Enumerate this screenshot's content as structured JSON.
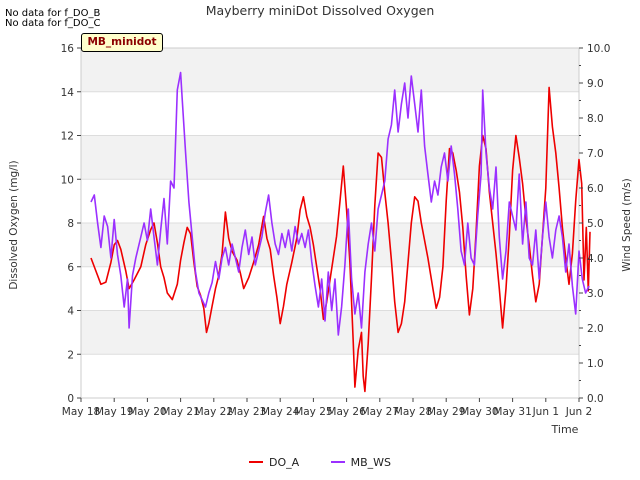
{
  "notes": [
    "No data for f_DO_B",
    "No data for f_DO_C"
  ],
  "site_label": "MB_minidot",
  "chart_data": {
    "type": "line",
    "title": "Mayberry miniDot Dissolved Oxygen",
    "xlabel": "Time",
    "ylabel": "Dissolved Oxygen (mg/l)",
    "y2label": "Wind Speed (m/s)",
    "x_ticks": [
      "May 18",
      "May 19",
      "May 20",
      "May 21",
      "May 22",
      "May 23",
      "May 24",
      "May 25",
      "May 26",
      "May 27",
      "May 28",
      "May 29",
      "May 30",
      "May 31",
      "Jun 1",
      "Jun 2"
    ],
    "xlim": [
      0,
      15
    ],
    "ylim": [
      0,
      16
    ],
    "y_ticks": [
      0,
      2,
      4,
      6,
      8,
      10,
      12,
      14,
      16
    ],
    "y2lim": [
      0,
      10
    ],
    "y2_ticks": [
      "0.0",
      "1.0",
      "2.0",
      "3.0",
      "4.0",
      "5.0",
      "6.0",
      "7.0",
      "8.0",
      "9.0",
      "10.0"
    ],
    "grid": true,
    "legend_position": "bottom",
    "series": [
      {
        "name": "DO_A",
        "color": "#ee0000",
        "axis": "left",
        "points": [
          [
            0.3,
            6.4
          ],
          [
            0.5,
            5.6
          ],
          [
            0.6,
            5.2
          ],
          [
            0.75,
            5.3
          ],
          [
            0.9,
            6.2
          ],
          [
            1.0,
            7.0
          ],
          [
            1.1,
            7.2
          ],
          [
            1.2,
            6.8
          ],
          [
            1.35,
            5.8
          ],
          [
            1.45,
            5.0
          ],
          [
            1.6,
            5.4
          ],
          [
            1.8,
            6.0
          ],
          [
            1.95,
            7.0
          ],
          [
            2.1,
            7.7
          ],
          [
            2.2,
            8.0
          ],
          [
            2.3,
            7.1
          ],
          [
            2.4,
            6.0
          ],
          [
            2.5,
            5.5
          ],
          [
            2.6,
            4.8
          ],
          [
            2.75,
            4.5
          ],
          [
            2.9,
            5.2
          ],
          [
            3.0,
            6.3
          ],
          [
            3.1,
            7.1
          ],
          [
            3.2,
            7.8
          ],
          [
            3.3,
            7.5
          ],
          [
            3.4,
            6.2
          ],
          [
            3.5,
            5.1
          ],
          [
            3.6,
            4.7
          ],
          [
            3.7,
            4.1
          ],
          [
            3.78,
            3.0
          ],
          [
            3.85,
            3.4
          ],
          [
            3.95,
            4.2
          ],
          [
            4.05,
            5.0
          ],
          [
            4.15,
            5.6
          ],
          [
            4.25,
            6.6
          ],
          [
            4.35,
            8.5
          ],
          [
            4.45,
            7.3
          ],
          [
            4.55,
            6.7
          ],
          [
            4.7,
            6.3
          ],
          [
            4.8,
            5.7
          ],
          [
            4.9,
            5.0
          ],
          [
            5.05,
            5.5
          ],
          [
            5.2,
            6.2
          ],
          [
            5.35,
            7.0
          ],
          [
            5.5,
            8.3
          ],
          [
            5.6,
            7.3
          ],
          [
            5.7,
            6.8
          ],
          [
            5.8,
            5.6
          ],
          [
            5.9,
            4.6
          ],
          [
            6.0,
            3.4
          ],
          [
            6.1,
            4.2
          ],
          [
            6.2,
            5.2
          ],
          [
            6.35,
            6.2
          ],
          [
            6.5,
            7.3
          ],
          [
            6.6,
            8.6
          ],
          [
            6.7,
            9.2
          ],
          [
            6.8,
            8.3
          ],
          [
            6.9,
            7.8
          ],
          [
            7.0,
            7.0
          ],
          [
            7.1,
            6.0
          ],
          [
            7.2,
            5.0
          ],
          [
            7.3,
            3.6
          ],
          [
            7.4,
            4.4
          ],
          [
            7.5,
            5.4
          ],
          [
            7.6,
            6.4
          ],
          [
            7.7,
            7.4
          ],
          [
            7.8,
            9.0
          ],
          [
            7.9,
            10.6
          ],
          [
            8.0,
            8.6
          ],
          [
            8.1,
            6.2
          ],
          [
            8.2,
            2.6
          ],
          [
            8.25,
            0.5
          ],
          [
            8.35,
            2.2
          ],
          [
            8.45,
            3.0
          ],
          [
            8.5,
            1.0
          ],
          [
            8.55,
            0.3
          ],
          [
            8.65,
            2.5
          ],
          [
            8.75,
            5.5
          ],
          [
            8.85,
            8.8
          ],
          [
            8.95,
            11.2
          ],
          [
            9.05,
            11.0
          ],
          [
            9.15,
            9.4
          ],
          [
            9.25,
            8.0
          ],
          [
            9.35,
            6.3
          ],
          [
            9.45,
            4.4
          ],
          [
            9.55,
            3.0
          ],
          [
            9.65,
            3.4
          ],
          [
            9.75,
            4.4
          ],
          [
            9.85,
            6.2
          ],
          [
            9.95,
            8.0
          ],
          [
            10.05,
            9.2
          ],
          [
            10.15,
            9.0
          ],
          [
            10.25,
            8.0
          ],
          [
            10.35,
            7.2
          ],
          [
            10.45,
            6.4
          ],
          [
            10.6,
            5.0
          ],
          [
            10.7,
            4.1
          ],
          [
            10.8,
            4.6
          ],
          [
            10.9,
            6.0
          ],
          [
            11.0,
            9.0
          ],
          [
            11.1,
            11.4
          ],
          [
            11.2,
            11.2
          ],
          [
            11.3,
            10.4
          ],
          [
            11.4,
            9.4
          ],
          [
            11.5,
            7.8
          ],
          [
            11.6,
            5.6
          ],
          [
            11.7,
            3.8
          ],
          [
            11.8,
            5.0
          ],
          [
            11.9,
            7.6
          ],
          [
            12.0,
            10.6
          ],
          [
            12.1,
            12.0
          ],
          [
            12.2,
            11.4
          ],
          [
            12.3,
            9.4
          ],
          [
            12.4,
            8.0
          ],
          [
            12.5,
            6.6
          ],
          [
            12.6,
            5.0
          ],
          [
            12.7,
            3.2
          ],
          [
            12.8,
            5.0
          ],
          [
            12.9,
            7.4
          ],
          [
            13.0,
            10.4
          ],
          [
            13.1,
            12.0
          ],
          [
            13.2,
            11.0
          ],
          [
            13.3,
            9.8
          ],
          [
            13.4,
            8.2
          ],
          [
            13.5,
            7.0
          ],
          [
            13.6,
            5.6
          ],
          [
            13.7,
            4.4
          ],
          [
            13.8,
            5.2
          ],
          [
            13.9,
            7.4
          ],
          [
            14.0,
            9.6
          ],
          [
            14.1,
            14.2
          ],
          [
            14.2,
            12.4
          ],
          [
            14.3,
            11.2
          ],
          [
            14.4,
            9.6
          ],
          [
            14.5,
            7.8
          ],
          [
            14.6,
            6.4
          ],
          [
            14.7,
            5.2
          ],
          [
            14.8,
            6.6
          ],
          [
            14.9,
            9.0
          ],
          [
            15.0,
            10.9
          ],
          [
            15.08,
            9.8
          ],
          [
            15.15,
            5.4
          ],
          [
            15.22,
            7.8
          ],
          [
            15.28,
            4.9
          ],
          [
            15.33,
            7.6
          ]
        ]
      },
      {
        "name": "MB_WS",
        "color": "#9b30ff",
        "axis": "right",
        "points": [
          [
            0.3,
            5.6
          ],
          [
            0.4,
            5.8
          ],
          [
            0.5,
            5.0
          ],
          [
            0.6,
            4.3
          ],
          [
            0.7,
            5.2
          ],
          [
            0.8,
            4.9
          ],
          [
            0.9,
            4.0
          ],
          [
            1.0,
            5.1
          ],
          [
            1.1,
            4.1
          ],
          [
            1.2,
            3.5
          ],
          [
            1.3,
            2.6
          ],
          [
            1.4,
            3.4
          ],
          [
            1.45,
            2.0
          ],
          [
            1.55,
            3.5
          ],
          [
            1.65,
            4.0
          ],
          [
            1.8,
            4.6
          ],
          [
            1.9,
            5.0
          ],
          [
            2.0,
            4.5
          ],
          [
            2.1,
            5.4
          ],
          [
            2.2,
            4.6
          ],
          [
            2.3,
            3.8
          ],
          [
            2.4,
            4.8
          ],
          [
            2.5,
            5.7
          ],
          [
            2.6,
            4.4
          ],
          [
            2.7,
            6.2
          ],
          [
            2.8,
            6.0
          ],
          [
            2.9,
            8.8
          ],
          [
            3.0,
            9.3
          ],
          [
            3.05,
            8.5
          ],
          [
            3.15,
            7.0
          ],
          [
            3.25,
            5.6
          ],
          [
            3.35,
            4.6
          ],
          [
            3.45,
            3.6
          ],
          [
            3.55,
            3.0
          ],
          [
            3.65,
            2.8
          ],
          [
            3.75,
            2.6
          ],
          [
            3.85,
            3.0
          ],
          [
            3.95,
            3.3
          ],
          [
            4.05,
            3.9
          ],
          [
            4.15,
            3.4
          ],
          [
            4.25,
            4.0
          ],
          [
            4.35,
            4.3
          ],
          [
            4.45,
            3.8
          ],
          [
            4.55,
            4.4
          ],
          [
            4.65,
            4.0
          ],
          [
            4.75,
            3.6
          ],
          [
            4.85,
            4.3
          ],
          [
            4.95,
            4.8
          ],
          [
            5.05,
            4.1
          ],
          [
            5.15,
            4.6
          ],
          [
            5.25,
            3.8
          ],
          [
            5.35,
            4.2
          ],
          [
            5.45,
            4.6
          ],
          [
            5.55,
            5.3
          ],
          [
            5.65,
            5.8
          ],
          [
            5.75,
            5.0
          ],
          [
            5.85,
            4.4
          ],
          [
            5.95,
            4.1
          ],
          [
            6.05,
            4.7
          ],
          [
            6.15,
            4.3
          ],
          [
            6.25,
            4.8
          ],
          [
            6.35,
            4.2
          ],
          [
            6.45,
            4.9
          ],
          [
            6.55,
            4.4
          ],
          [
            6.65,
            4.7
          ],
          [
            6.75,
            4.3
          ],
          [
            6.85,
            4.8
          ],
          [
            6.95,
            3.9
          ],
          [
            7.05,
            3.2
          ],
          [
            7.15,
            2.6
          ],
          [
            7.25,
            3.4
          ],
          [
            7.35,
            2.2
          ],
          [
            7.45,
            3.6
          ],
          [
            7.55,
            2.5
          ],
          [
            7.65,
            3.4
          ],
          [
            7.75,
            1.8
          ],
          [
            7.85,
            2.6
          ],
          [
            7.95,
            3.8
          ],
          [
            8.05,
            5.4
          ],
          [
            8.15,
            3.4
          ],
          [
            8.25,
            2.4
          ],
          [
            8.35,
            3.0
          ],
          [
            8.45,
            2.0
          ],
          [
            8.55,
            3.6
          ],
          [
            8.65,
            4.4
          ],
          [
            8.75,
            5.0
          ],
          [
            8.85,
            4.2
          ],
          [
            8.95,
            5.4
          ],
          [
            9.05,
            5.8
          ],
          [
            9.15,
            6.2
          ],
          [
            9.25,
            7.4
          ],
          [
            9.35,
            7.8
          ],
          [
            9.45,
            8.8
          ],
          [
            9.55,
            7.6
          ],
          [
            9.65,
            8.4
          ],
          [
            9.75,
            9.0
          ],
          [
            9.85,
            8.0
          ],
          [
            9.95,
            9.2
          ],
          [
            10.05,
            8.4
          ],
          [
            10.15,
            7.6
          ],
          [
            10.25,
            8.8
          ],
          [
            10.35,
            7.2
          ],
          [
            10.45,
            6.4
          ],
          [
            10.55,
            5.6
          ],
          [
            10.65,
            6.2
          ],
          [
            10.75,
            5.8
          ],
          [
            10.85,
            6.6
          ],
          [
            10.95,
            7.0
          ],
          [
            11.05,
            6.2
          ],
          [
            11.15,
            7.2
          ],
          [
            11.25,
            6.4
          ],
          [
            11.35,
            5.4
          ],
          [
            11.45,
            4.2
          ],
          [
            11.55,
            3.8
          ],
          [
            11.65,
            5.0
          ],
          [
            11.75,
            4.0
          ],
          [
            11.85,
            3.8
          ],
          [
            11.95,
            5.2
          ],
          [
            12.05,
            6.4
          ],
          [
            12.1,
            8.8
          ],
          [
            12.2,
            7.0
          ],
          [
            12.3,
            6.0
          ],
          [
            12.4,
            5.4
          ],
          [
            12.5,
            6.6
          ],
          [
            12.6,
            4.6
          ],
          [
            12.7,
            3.4
          ],
          [
            12.8,
            4.2
          ],
          [
            12.9,
            5.6
          ],
          [
            13.0,
            5.2
          ],
          [
            13.1,
            4.8
          ],
          [
            13.2,
            6.4
          ],
          [
            13.3,
            4.4
          ],
          [
            13.4,
            5.6
          ],
          [
            13.5,
            4.0
          ],
          [
            13.6,
            3.8
          ],
          [
            13.7,
            4.8
          ],
          [
            13.8,
            3.4
          ],
          [
            13.9,
            4.6
          ],
          [
            14.0,
            5.6
          ],
          [
            14.1,
            4.6
          ],
          [
            14.2,
            4.0
          ],
          [
            14.3,
            4.8
          ],
          [
            14.4,
            5.2
          ],
          [
            14.5,
            4.6
          ],
          [
            14.6,
            3.6
          ],
          [
            14.7,
            4.4
          ],
          [
            14.8,
            3.2
          ],
          [
            14.9,
            2.4
          ],
          [
            15.0,
            4.2
          ],
          [
            15.1,
            3.4
          ],
          [
            15.2,
            3.0
          ],
          [
            15.3,
            3.2
          ]
        ]
      }
    ]
  }
}
